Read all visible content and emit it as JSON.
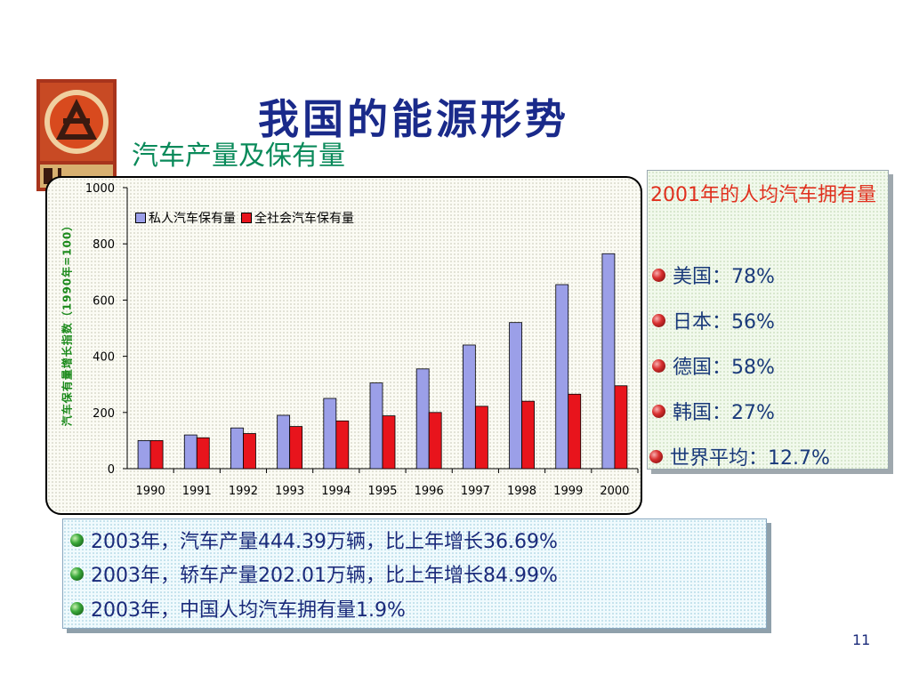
{
  "slide": {
    "title": "我国的能源形势",
    "subtitle": "汽车产量及保有量",
    "page_number": "11"
  },
  "chart_data": {
    "type": "bar",
    "categories": [
      "1990",
      "1991",
      "1992",
      "1993",
      "1994",
      "1995",
      "1996",
      "1997",
      "1998",
      "1999",
      "2000"
    ],
    "series": [
      {
        "name": "私人汽车保有量",
        "color": "#9b9fe8",
        "values": [
          100,
          120,
          145,
          190,
          250,
          305,
          355,
          440,
          520,
          655,
          765
        ]
      },
      {
        "name": "全社会汽车保有量",
        "color": "#e8141c",
        "values": [
          100,
          110,
          125,
          150,
          170,
          188,
          200,
          222,
          240,
          265,
          295
        ]
      }
    ],
    "ylabel": "汽车保有量增长指数（1990年=100）",
    "ylim": [
      0,
      1000
    ],
    "yticks": [
      "0",
      "200",
      "400",
      "600",
      "800",
      "1000"
    ],
    "grid": false,
    "legend_position": "top-left"
  },
  "right_panel": {
    "title": "2001年的人均汽车拥有量",
    "items": [
      "美国：78%",
      "日本：56%",
      "德国：58%",
      "韩国：27%",
      "世界平均：12.7%"
    ]
  },
  "bottom_panel": {
    "items": [
      "2003年，汽车产量444.39万辆，比上年增长36.69%",
      "2003年，轿车产量202.01万辆，比上年增长84.99%",
      "2003年，中国人均汽车拥有量1.9%"
    ]
  }
}
